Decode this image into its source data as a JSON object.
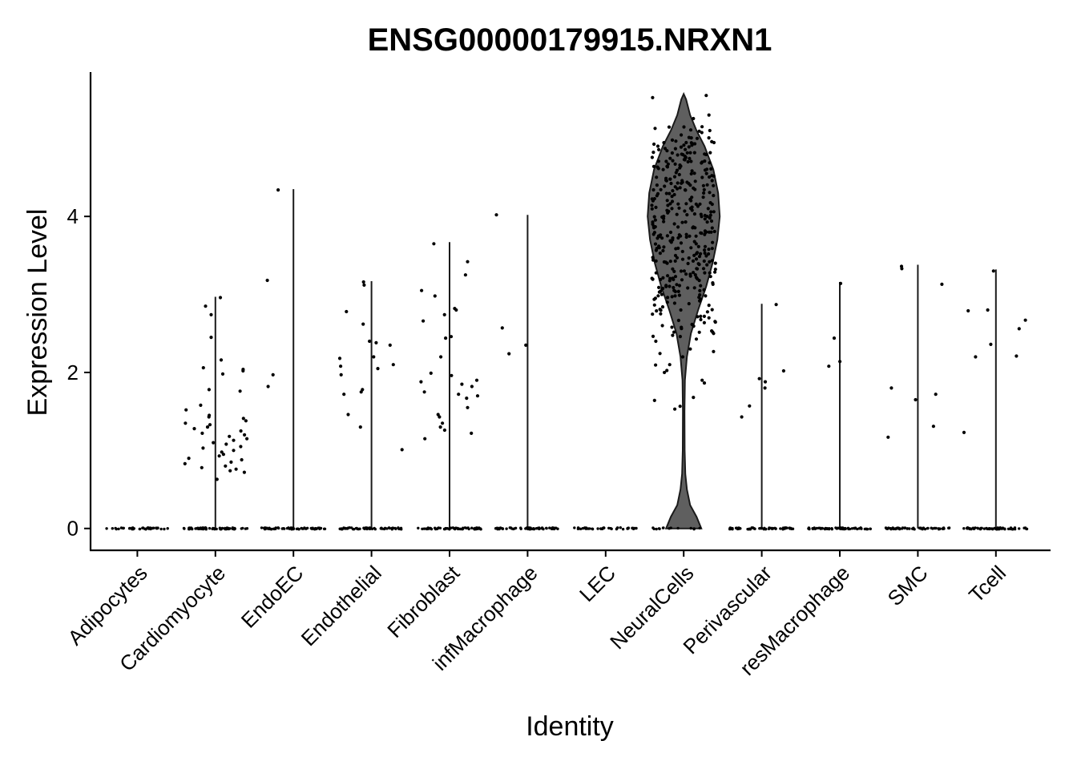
{
  "chart_data": {
    "type": "violin",
    "title": "ENSG00000179915.NRXN1",
    "xlabel": "Identity",
    "ylabel": "Expression Level",
    "ylim": [
      -0.28,
      5.85
    ],
    "y_ticks": [
      0,
      2,
      4
    ],
    "categories": [
      "Adipocytes",
      "Cardiomyocyte",
      "EndoEC",
      "Endothelial",
      "Fibroblast",
      "infMacrophage",
      "LEC",
      "NeuralCells",
      "Perivascular",
      "resMacrophage",
      "SMC",
      "Tcell"
    ],
    "series": [
      {
        "category": "Adipocytes",
        "max": 0,
        "nonzero_values": []
      },
      {
        "category": "Cardiomyocyte",
        "max": 2.97,
        "nonzero_values": [
          2.96,
          2.85,
          2.74,
          2.45,
          2.16,
          2.06,
          2.04,
          2.02,
          1.98,
          1.78,
          1.76,
          1.58,
          1.52,
          1.45,
          1.43,
          1.41,
          1.38,
          1.35,
          1.33,
          1.3,
          1.28,
          1.25,
          1.22,
          1.2,
          1.18,
          1.15,
          1.13,
          1.1,
          1.08,
          1.05,
          1.03,
          1.0,
          0.98,
          0.95,
          0.93,
          0.9,
          0.88,
          0.85,
          0.83,
          0.8,
          0.78,
          0.76,
          0.74,
          0.72,
          0.63
        ]
      },
      {
        "category": "EndoEC",
        "max": 4.35,
        "nonzero_values": [
          4.34,
          3.18,
          1.97,
          1.82
        ]
      },
      {
        "category": "Endothelial",
        "max": 3.17,
        "nonzero_values": [
          3.16,
          3.12,
          2.78,
          2.62,
          2.4,
          2.38,
          2.35,
          2.2,
          2.18,
          2.1,
          2.08,
          2.05,
          1.97,
          1.78,
          1.75,
          1.72,
          1.46,
          1.3,
          1.01
        ]
      },
      {
        "category": "Fibroblast",
        "max": 3.67,
        "nonzero_values": [
          3.65,
          3.42,
          3.25,
          3.05,
          2.98,
          2.82,
          2.8,
          2.74,
          2.66,
          2.46,
          2.44,
          2.2,
          1.99,
          1.96,
          1.9,
          1.88,
          1.85,
          1.82,
          1.75,
          1.72,
          1.7,
          1.67,
          1.55,
          1.46,
          1.43,
          1.35,
          1.3,
          1.26,
          1.22,
          1.15
        ]
      },
      {
        "category": "infMacrophage",
        "max": 4.02,
        "nonzero_values": [
          4.02,
          2.57,
          2.35,
          2.24
        ]
      },
      {
        "category": "LEC",
        "max": 0,
        "nonzero_values": []
      },
      {
        "category": "NeuralCells",
        "max": 5.57,
        "nonzero_values": [
          5.55,
          5.3,
          5.1,
          5.0,
          4.9,
          4.8,
          4.7,
          4.6,
          4.5,
          4.4,
          4.3,
          4.2,
          4.1,
          4.0,
          3.9,
          3.8,
          3.7,
          3.6,
          3.5,
          3.4,
          3.3,
          3.2,
          3.1,
          3.0,
          2.9,
          2.8,
          2.7,
          2.6,
          2.5,
          2.4,
          2.3,
          2.2,
          2.1,
          2.0,
          1.9,
          1.68,
          1.53
        ]
      },
      {
        "category": "Perivascular",
        "max": 2.88,
        "nonzero_values": [
          2.87,
          2.02,
          1.92,
          1.88,
          1.8,
          1.57,
          1.43
        ]
      },
      {
        "category": "resMacrophage",
        "max": 3.16,
        "nonzero_values": [
          3.14,
          2.44,
          2.14,
          2.08
        ]
      },
      {
        "category": "SMC",
        "max": 3.38,
        "nonzero_values": [
          3.36,
          3.33,
          3.13,
          1.8,
          1.72,
          1.65,
          1.31,
          1.17
        ]
      },
      {
        "category": "Tcell",
        "max": 3.32,
        "nonzero_values": [
          3.3,
          2.8,
          2.79,
          2.67,
          2.56,
          2.36,
          2.21,
          2.2,
          1.23
        ]
      }
    ],
    "grid": false,
    "legend": "none",
    "colors": {
      "violin_fill": "#5f5f5f",
      "outline": "#1a1a1a",
      "points": "#000000"
    }
  }
}
